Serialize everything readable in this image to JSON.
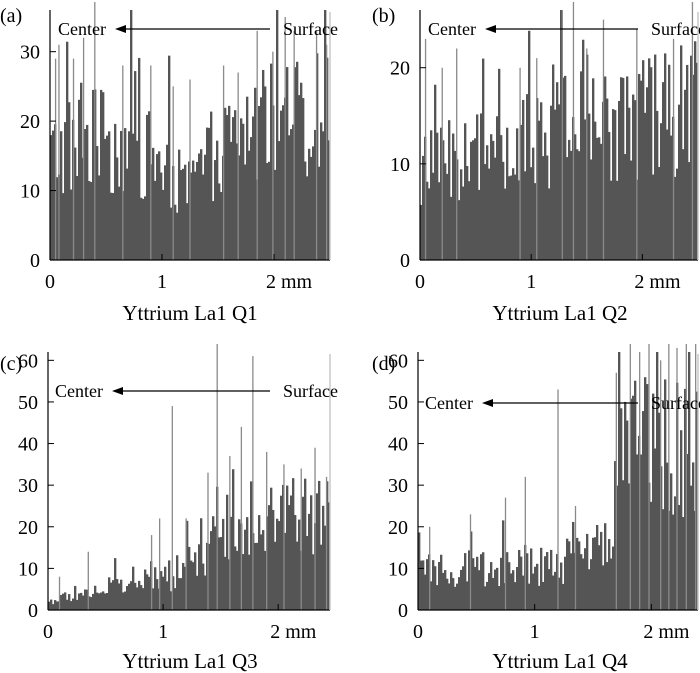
{
  "chart_data": [
    {
      "type": "bar",
      "panel_label": "(a)",
      "xlabel": "Yttrium La1  Q1",
      "annotation_left": "Center",
      "annotation_right": "Surface",
      "x_range": [
        0,
        2.5
      ],
      "ylim": [
        0,
        36
      ],
      "yticks": [
        0,
        10,
        20,
        30
      ],
      "xticks": [
        {
          "value": 0,
          "label": "0"
        },
        {
          "value": 1,
          "label": "1"
        },
        {
          "value": 2,
          "label": "2 mm"
        }
      ],
      "bar_color": "#555555",
      "trend": [
        [
          0,
          15
        ],
        [
          0.25,
          17
        ],
        [
          0.5,
          17
        ],
        [
          0.75,
          16
        ],
        [
          1.0,
          14
        ],
        [
          1.2,
          10
        ],
        [
          1.5,
          16
        ],
        [
          1.8,
          19
        ],
        [
          2.1,
          20
        ],
        [
          2.5,
          21
        ]
      ],
      "spikes": [
        [
          0.05,
          29
        ],
        [
          0.08,
          31
        ],
        [
          0.21,
          29
        ],
        [
          0.3,
          32
        ],
        [
          0.4,
          38
        ],
        [
          0.65,
          28
        ],
        [
          0.9,
          28
        ],
        [
          1.1,
          25
        ],
        [
          1.25,
          26
        ],
        [
          1.55,
          28
        ],
        [
          1.68,
          27
        ],
        [
          1.85,
          33
        ],
        [
          1.99,
          30
        ],
        [
          2.1,
          35
        ],
        [
          2.18,
          33
        ],
        [
          2.38,
          33
        ],
        [
          2.47,
          31
        ]
      ]
    },
    {
      "type": "bar",
      "panel_label": "(b)",
      "xlabel": "Yttrium La1  Q2",
      "annotation_left": "Center",
      "annotation_right": "Surface",
      "x_range": [
        0,
        2.5
      ],
      "ylim": [
        0,
        26
      ],
      "yticks": [
        0,
        10,
        20
      ],
      "xticks": [
        {
          "value": 0,
          "label": "0"
        },
        {
          "value": 1,
          "label": "1"
        },
        {
          "value": 2,
          "label": "2 mm"
        }
      ],
      "bar_color": "#555555",
      "trend": [
        [
          0,
          9
        ],
        [
          0.5,
          11
        ],
        [
          1.0,
          12
        ],
        [
          1.5,
          14
        ],
        [
          2.0,
          15
        ],
        [
          2.5,
          16
        ]
      ],
      "spikes": [
        [
          0.05,
          23
        ],
        [
          0.2,
          20
        ],
        [
          0.33,
          22
        ],
        [
          0.9,
          20
        ],
        [
          1.05,
          21
        ],
        [
          1.28,
          26
        ],
        [
          1.38,
          29
        ],
        [
          1.5,
          22
        ],
        [
          1.65,
          25
        ],
        [
          1.95,
          24
        ],
        [
          2.28,
          23
        ],
        [
          2.45,
          28
        ]
      ]
    },
    {
      "type": "bar",
      "panel_label": "(c)",
      "xlabel": "Yttrium La1  Q3",
      "annotation_left": "Center",
      "annotation_right": "Surface",
      "x_range": [
        0,
        2.45
      ],
      "ylim": [
        0,
        62
      ],
      "yticks": [
        0,
        10,
        20,
        30,
        40,
        50,
        60
      ],
      "xticks": [
        {
          "value": 0,
          "label": "0"
        },
        {
          "value": 1,
          "label": "1"
        },
        {
          "value": 2,
          "label": "2 mm"
        }
      ],
      "bar_color": "#555555",
      "trend": [
        [
          0,
          2
        ],
        [
          0.3,
          4
        ],
        [
          0.6,
          6
        ],
        [
          0.9,
          7
        ],
        [
          1.1,
          8
        ],
        [
          1.3,
          12
        ],
        [
          1.45,
          16
        ],
        [
          1.6,
          22
        ],
        [
          1.8,
          24
        ],
        [
          2.1,
          23
        ],
        [
          2.45,
          22
        ]
      ],
      "spikes": [
        [
          0.1,
          8
        ],
        [
          0.35,
          14
        ],
        [
          0.9,
          18
        ],
        [
          0.97,
          22
        ],
        [
          1.08,
          49
        ],
        [
          1.2,
          22
        ],
        [
          1.39,
          33
        ],
        [
          1.47,
          65
        ],
        [
          1.58,
          37
        ],
        [
          1.68,
          44
        ],
        [
          1.78,
          61
        ],
        [
          1.9,
          38
        ],
        [
          2.05,
          35
        ],
        [
          2.2,
          34
        ],
        [
          2.32,
          39
        ],
        [
          2.42,
          32
        ]
      ]
    },
    {
      "type": "bar",
      "panel_label": "(d)",
      "xlabel": "Yttrium La1  Q4",
      "annotation_left": "Center",
      "annotation_right": "Surface",
      "x_range": [
        0,
        2.4
      ],
      "ylim": [
        0,
        62
      ],
      "yticks": [
        0,
        10,
        20,
        30,
        40,
        50,
        60
      ],
      "xticks": [
        {
          "value": 0,
          "label": "0"
        },
        {
          "value": 1,
          "label": "1"
        },
        {
          "value": 2,
          "label": "2 mm"
        }
      ],
      "bar_color": "#555555",
      "trend": [
        [
          0,
          9
        ],
        [
          0.3,
          10
        ],
        [
          0.6,
          10
        ],
        [
          0.9,
          10
        ],
        [
          1.2,
          11
        ],
        [
          1.5,
          13
        ],
        [
          1.65,
          20
        ],
        [
          1.75,
          38
        ],
        [
          1.9,
          44
        ],
        [
          2.1,
          42
        ],
        [
          2.4,
          38
        ]
      ],
      "spikes": [
        [
          0.1,
          20
        ],
        [
          0.45,
          23
        ],
        [
          0.75,
          27
        ],
        [
          0.92,
          32
        ],
        [
          1.2,
          53
        ],
        [
          1.35,
          25
        ],
        [
          1.7,
          57
        ],
        [
          1.82,
          65
        ],
        [
          1.9,
          62
        ],
        [
          1.98,
          67
        ],
        [
          2.08,
          60
        ],
        [
          2.15,
          66
        ],
        [
          2.22,
          63
        ],
        [
          2.3,
          65
        ],
        [
          2.38,
          64
        ]
      ]
    }
  ]
}
